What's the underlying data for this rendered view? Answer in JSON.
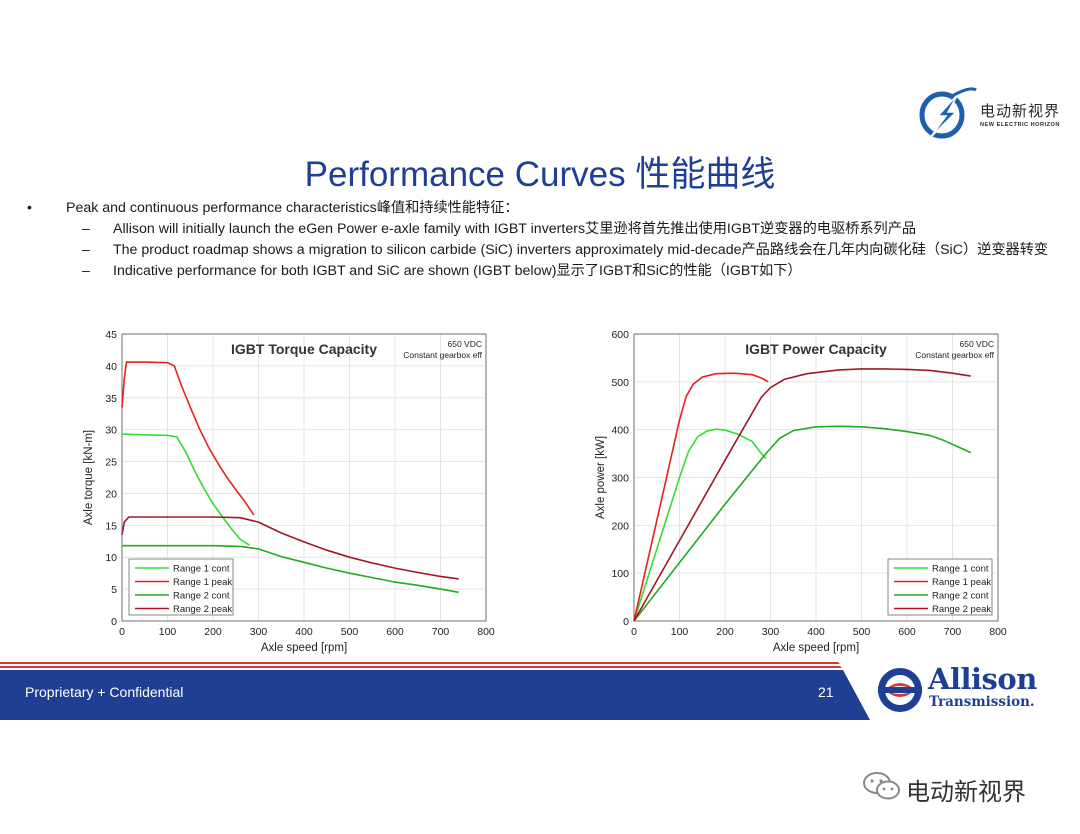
{
  "header": {
    "title": "Performance Curves   性能曲线",
    "logo_cn": "电动新视界",
    "logo_en": "NEW ELECTRIC HORIZON"
  },
  "bullets": {
    "main": "Peak and continuous performance characteristics峰值和持续性能特征：",
    "sub": [
      "Allison will initially launch the eGen Power e-axle family with IGBT inverters艾里逊将首先推出使用IGBT逆变器的电驱桥系列产品",
      "The product roadmap shows a migration to silicon carbide (SiC) inverters approximately mid-decade产品路线会在几年内向碳化硅（SiC）逆变器转变",
      "Indicative performance for both IGBT and SiC are shown (IGBT below)显示了IGBT和SiC的性能（IGBT如下）"
    ]
  },
  "footer": {
    "confidential": "Proprietary + Confidential",
    "page": "21",
    "brand_name": "Allison",
    "brand_sub": "Transmission.",
    "wechat": "电动新视界"
  },
  "colors": {
    "title": "#1f3f94",
    "footer_blue": "#1f3f94",
    "footer_red": "#d93636",
    "range1": "#33dd33",
    "range1_peak": "#e82020",
    "range2": "#22aa22",
    "range2_peak": "#a01828"
  },
  "chart_data": [
    {
      "type": "line",
      "title": "IGBT Torque Capacity",
      "annotation": [
        "650 VDC",
        "Constant gearbox eff"
      ],
      "xlabel": "Axle speed [rpm]",
      "ylabel": "Axle torque [kN-m]",
      "xlim": [
        0,
        800
      ],
      "ylim": [
        0,
        45
      ],
      "xticks": [
        0,
        100,
        200,
        300,
        400,
        500,
        600,
        700,
        800
      ],
      "yticks": [
        0,
        5,
        10,
        15,
        20,
        25,
        30,
        35,
        40,
        45
      ],
      "grid": true,
      "legend": "bottom-left",
      "series": [
        {
          "name": "Range 1 cont",
          "color": "#33dd33",
          "points": [
            [
              0,
              29.3
            ],
            [
              50,
              29.2
            ],
            [
              100,
              29.1
            ],
            [
              120,
              28.9
            ],
            [
              140,
              26.5
            ],
            [
              160,
              23.5
            ],
            [
              180,
              20.8
            ],
            [
              200,
              18.4
            ],
            [
              220,
              16.4
            ],
            [
              240,
              14.5
            ],
            [
              260,
              12.8
            ],
            [
              280,
              11.9
            ]
          ]
        },
        {
          "name": "Range 1 peak",
          "color": "#e82020",
          "points": [
            [
              0,
              33.5
            ],
            [
              5,
              38
            ],
            [
              10,
              40.6
            ],
            [
              50,
              40.6
            ],
            [
              100,
              40.5
            ],
            [
              115,
              40
            ],
            [
              130,
              37
            ],
            [
              150,
              33.5
            ],
            [
              170,
              30.2
            ],
            [
              190,
              27.3
            ],
            [
              210,
              24.8
            ],
            [
              230,
              22.6
            ],
            [
              250,
              20.6
            ],
            [
              270,
              18.7
            ],
            [
              290,
              16.6
            ]
          ]
        },
        {
          "name": "Range 2 cont",
          "color": "#22aa22",
          "points": [
            [
              0,
              11.8
            ],
            [
              100,
              11.8
            ],
            [
              200,
              11.8
            ],
            [
              260,
              11.7
            ],
            [
              300,
              11.3
            ],
            [
              350,
              10.1
            ],
            [
              400,
              9.2
            ],
            [
              450,
              8.3
            ],
            [
              500,
              7.5
            ],
            [
              550,
              6.8
            ],
            [
              600,
              6.1
            ],
            [
              650,
              5.6
            ],
            [
              700,
              5.0
            ],
            [
              740,
              4.5
            ]
          ]
        },
        {
          "name": "Range 2 peak",
          "color": "#a01828",
          "points": [
            [
              0,
              13.5
            ],
            [
              5,
              15.5
            ],
            [
              15,
              16.3
            ],
            [
              100,
              16.3
            ],
            [
              200,
              16.3
            ],
            [
              260,
              16.2
            ],
            [
              300,
              15.5
            ],
            [
              350,
              13.8
            ],
            [
              400,
              12.4
            ],
            [
              450,
              11.1
            ],
            [
              500,
              10.0
            ],
            [
              550,
              9.1
            ],
            [
              600,
              8.3
            ],
            [
              650,
              7.6
            ],
            [
              700,
              7.0
            ],
            [
              740,
              6.6
            ]
          ]
        }
      ]
    },
    {
      "type": "line",
      "title": "IGBT Power Capacity",
      "annotation": [
        "650 VDC",
        "Constant gearbox eff"
      ],
      "xlabel": "Axle speed [rpm]",
      "ylabel": "Axle power [kW]",
      "xlim": [
        0,
        800
      ],
      "ylim": [
        0,
        600
      ],
      "xticks": [
        0,
        100,
        200,
        300,
        400,
        500,
        600,
        700,
        800
      ],
      "yticks": [
        0,
        100,
        200,
        300,
        400,
        500,
        600
      ],
      "grid": true,
      "legend": "bottom-right",
      "series": [
        {
          "name": "Range 1 cont",
          "color": "#33dd33",
          "points": [
            [
              0,
              0
            ],
            [
              50,
              150
            ],
            [
              100,
              300
            ],
            [
              120,
              355
            ],
            [
              140,
              385
            ],
            [
              160,
              397
            ],
            [
              180,
              401
            ],
            [
              200,
              399
            ],
            [
              230,
              390
            ],
            [
              260,
              375
            ],
            [
              280,
              350
            ],
            [
              290,
              340
            ]
          ]
        },
        {
          "name": "Range 1 peak",
          "color": "#e82020",
          "points": [
            [
              0,
              0
            ],
            [
              50,
              210
            ],
            [
              100,
              420
            ],
            [
              115,
              470
            ],
            [
              130,
              495
            ],
            [
              150,
              510
            ],
            [
              180,
              517
            ],
            [
              220,
              518
            ],
            [
              260,
              515
            ],
            [
              280,
              508
            ],
            [
              295,
              500
            ]
          ]
        },
        {
          "name": "Range 2 cont",
          "color": "#22aa22",
          "points": [
            [
              0,
              0
            ],
            [
              100,
              122
            ],
            [
              200,
              244
            ],
            [
              290,
              350
            ],
            [
              320,
              382
            ],
            [
              350,
              398
            ],
            [
              400,
              406
            ],
            [
              450,
              407
            ],
            [
              500,
              406
            ],
            [
              550,
              402
            ],
            [
              600,
              396
            ],
            [
              650,
              388
            ],
            [
              680,
              378
            ],
            [
              710,
              365
            ],
            [
              740,
              352
            ]
          ]
        },
        {
          "name": "Range 2 peak",
          "color": "#a01828",
          "points": [
            [
              0,
              0
            ],
            [
              100,
              168
            ],
            [
              200,
              336
            ],
            [
              280,
              468
            ],
            [
              300,
              488
            ],
            [
              330,
              505
            ],
            [
              380,
              517
            ],
            [
              450,
              525
            ],
            [
              500,
              527
            ],
            [
              550,
              527
            ],
            [
              600,
              526
            ],
            [
              650,
              524
            ],
            [
              700,
              518
            ],
            [
              740,
              512
            ]
          ]
        }
      ]
    }
  ]
}
